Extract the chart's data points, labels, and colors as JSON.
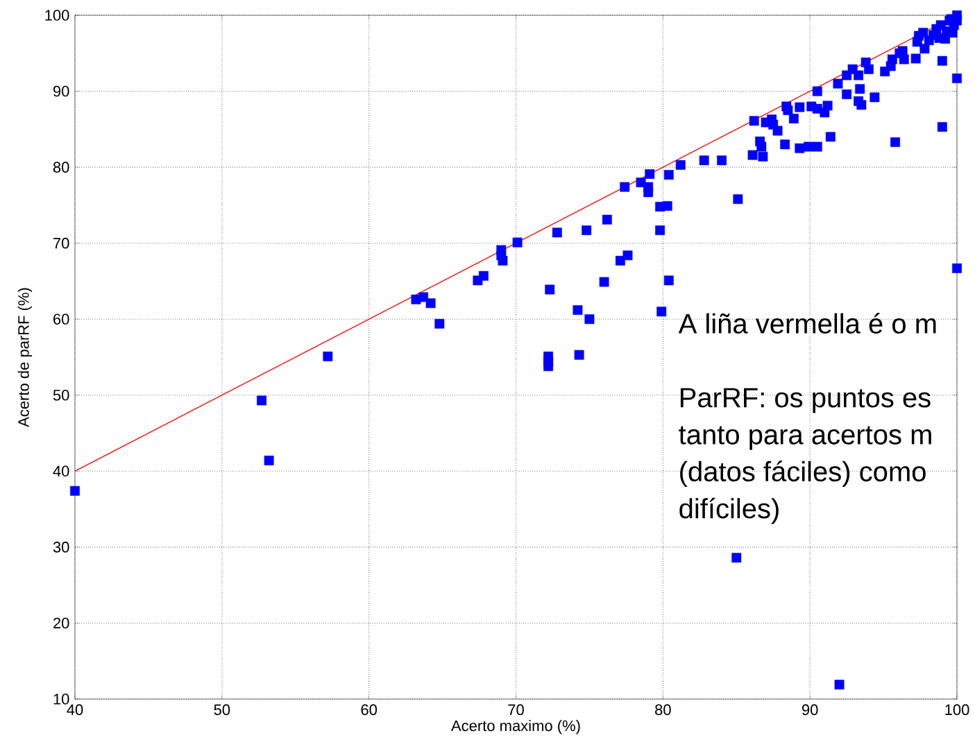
{
  "chart_data": {
    "type": "scatter",
    "xlabel": "Acerto maximo (%)",
    "ylabel": "Acerto de parRF (%)",
    "xlim": [
      40,
      100
    ],
    "ylim": [
      10,
      100
    ],
    "xticks": [
      40,
      50,
      60,
      70,
      80,
      90,
      100
    ],
    "yticks": [
      10,
      20,
      30,
      40,
      50,
      60,
      70,
      80,
      90,
      100
    ],
    "grid": true,
    "annotations": [
      "A liña vermella é o m",
      "ParRF: os puntos es",
      "tanto para acertos m",
      "(datos fáciles) como",
      "difíciles)"
    ],
    "series": [
      {
        "marker": "square",
        "color": "#0000ff",
        "x": [
          40,
          52.7,
          53.2,
          57.2,
          63.2,
          63.7,
          64.2,
          64.8,
          67.4,
          67.8,
          69.0,
          69.0,
          69.1,
          70.1,
          72.2,
          72.2,
          72.2,
          72.3,
          72.8,
          74.2,
          74.3,
          74.8,
          75.0,
          76.0,
          76.2,
          77.1,
          77.4,
          77.6,
          78.5,
          79.0,
          79.0,
          79.1,
          79.8,
          79.8,
          79.9,
          80.3,
          80.4,
          80.4,
          81.2,
          82.8,
          84.0,
          85.1,
          85.0,
          86.1,
          86.2,
          86.6,
          86.7,
          86.8,
          87.0,
          87.4,
          87.5,
          87.8,
          88.3,
          88.4,
          88.5,
          88.9,
          89.3,
          89.3,
          89.9,
          90.1,
          90.5,
          90.5,
          90.5,
          91.0,
          91.2,
          91.4,
          91.9,
          92.0,
          92.5,
          92.5,
          92.9,
          93.3,
          93.3,
          93.4,
          93.5,
          93.8,
          94.0,
          94.4,
          95.1,
          95.5,
          95.6,
          95.8,
          96.1,
          96.3,
          96.4,
          97.2,
          97.3,
          97.4,
          97.7,
          97.8,
          98.1,
          98.4,
          98.6,
          98.8,
          98.9,
          99.0,
          99.0,
          99.2,
          99.3,
          99.5,
          99.6,
          99.7,
          99.8,
          100,
          100,
          100,
          100
        ],
        "values": [
          37.4,
          49.3,
          41.4,
          55.1,
          62.6,
          62.9,
          62.1,
          59.4,
          65.1,
          65.7,
          69.1,
          68.4,
          67.7,
          70.1,
          55.1,
          54.4,
          53.8,
          63.9,
          71.4,
          61.2,
          55.3,
          71.7,
          60.0,
          64.9,
          73.1,
          67.7,
          77.4,
          68.4,
          78.0,
          76.7,
          77.4,
          79.1,
          71.7,
          74.8,
          61.0,
          74.9,
          65.1,
          79.0,
          80.3,
          80.9,
          80.9,
          75.8,
          28.6,
          81.6,
          86.1,
          83.4,
          82.7,
          81.4,
          85.9,
          86.3,
          85.6,
          84.8,
          83.0,
          88.0,
          87.5,
          86.4,
          87.9,
          82.5,
          82.7,
          88.0,
          82.7,
          90.0,
          87.7,
          87.2,
          88.1,
          84.0,
          91.0,
          11.9,
          92.1,
          89.6,
          92.9,
          88.7,
          92.1,
          90.3,
          88.2,
          93.8,
          92.9,
          89.2,
          92.6,
          93.3,
          94.2,
          83.3,
          95.0,
          95.3,
          94.2,
          94.3,
          96.5,
          97.3,
          97.7,
          95.6,
          96.7,
          97.4,
          98.2,
          97.0,
          98.7,
          94.0,
          85.3,
          96.9,
          97.9,
          99.3,
          99.5,
          97.7,
          98.7,
          100,
          99.3,
          91.7,
          66.7
        ]
      },
      {
        "type": "line",
        "marker": "none",
        "color": "#ff0000",
        "x": [
          40,
          100
        ],
        "values": [
          40,
          100
        ]
      }
    ]
  }
}
